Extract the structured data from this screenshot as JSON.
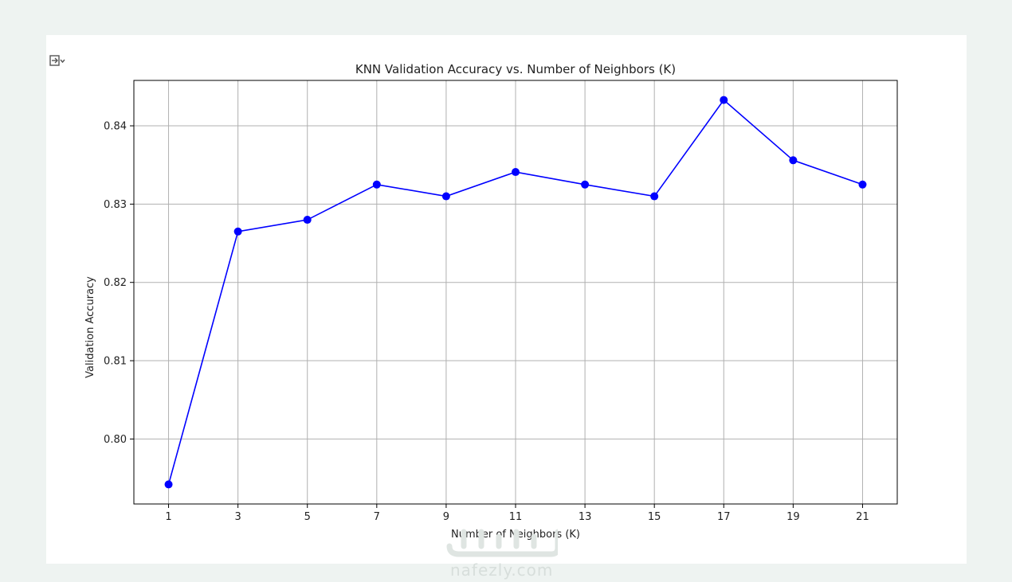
{
  "watermark": {
    "text": "nafezly.com"
  },
  "chart_data": {
    "type": "line",
    "title": "KNN Validation Accuracy vs. Number of Neighbors (K)",
    "xlabel": "Number of Neighbors (K)",
    "ylabel": "Validation Accuracy",
    "x": [
      1,
      3,
      5,
      7,
      9,
      11,
      13,
      15,
      17,
      19,
      21
    ],
    "series": [
      {
        "values": [
          0.7942,
          0.8265,
          0.828,
          0.8325,
          0.831,
          0.8341,
          0.8325,
          0.831,
          0.8433,
          0.8356,
          0.8325
        ]
      }
    ],
    "xticks": [
      "1",
      "3",
      "5",
      "7",
      "9",
      "11",
      "13",
      "15",
      "17",
      "19",
      "21"
    ],
    "yticks": [
      "0.80",
      "0.81",
      "0.82",
      "0.83",
      "0.84"
    ],
    "xlim": [
      0,
      22
    ],
    "ylim": [
      0.7917,
      0.8458
    ],
    "grid": true,
    "marker": "circle",
    "color": "#0000ff"
  }
}
